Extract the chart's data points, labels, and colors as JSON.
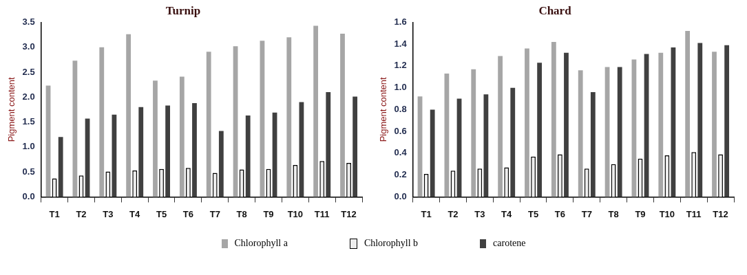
{
  "chart_data": [
    {
      "type": "bar",
      "title": "Turnip",
      "ylabel": "Pigment content",
      "categories": [
        "T1",
        "T2",
        "T3",
        "T4",
        "T5",
        "T6",
        "T7",
        "T8",
        "T9",
        "T10",
        "T11",
        "T12"
      ],
      "series": [
        {
          "name": "Chlorophyll a",
          "color": "#a6a6a6",
          "values": [
            2.23,
            2.73,
            3.0,
            3.26,
            2.33,
            2.41,
            2.91,
            3.02,
            3.13,
            3.2,
            3.43,
            3.27
          ]
        },
        {
          "name": "Chlorophyll b",
          "color": "#eeeeee",
          "values": [
            0.37,
            0.43,
            0.51,
            0.53,
            0.56,
            0.58,
            0.48,
            0.55,
            0.56,
            0.64,
            0.72,
            0.68
          ]
        },
        {
          "name": "carotene",
          "color": "#404040",
          "values": [
            1.2,
            1.57,
            1.65,
            1.8,
            1.83,
            1.88,
            1.32,
            1.63,
            1.69,
            1.9,
            2.1,
            2.01
          ]
        }
      ],
      "ylim": [
        0,
        3.5
      ],
      "yticks": [
        {
          "value": 0,
          "label": "0.0"
        },
        {
          "value": 0.5,
          "label": "0.5"
        },
        {
          "value": 1,
          "label": "1.0"
        },
        {
          "value": 1.5,
          "label": "1.5"
        },
        {
          "value": 2,
          "label": "2.0"
        },
        {
          "value": 2.5,
          "label": "2.5"
        },
        {
          "value": 3,
          "label": "3.0"
        },
        {
          "value": 3.5,
          "label": "3.5"
        }
      ],
      "grid": false,
      "legend": "bottom"
    },
    {
      "type": "bar",
      "title": "Chard",
      "ylabel": "Pigment content",
      "categories": [
        "T1",
        "T2",
        "T3",
        "T4",
        "T5",
        "T6",
        "T7",
        "T8",
        "T9",
        "T10",
        "T11",
        "T12"
      ],
      "series": [
        {
          "color": "#a6a6a6",
          "values": [
            0.92,
            1.13,
            1.17,
            1.29,
            1.36,
            1.42,
            1.16,
            1.19,
            1.26,
            1.32,
            1.52,
            1.33
          ]
        },
        {
          "color": "#eeeeee",
          "values": [
            0.21,
            0.24,
            0.26,
            0.27,
            0.37,
            0.39,
            0.26,
            0.3,
            0.35,
            0.38,
            0.41,
            0.39
          ]
        },
        {
          "color": "#404040",
          "values": [
            0.8,
            0.9,
            0.94,
            1.0,
            1.23,
            1.32,
            0.96,
            1.19,
            1.31,
            1.37,
            1.41,
            1.39
          ]
        }
      ],
      "ylim": [
        0,
        1.6
      ],
      "yticks": [
        {
          "value": 0,
          "label": "0.0"
        },
        {
          "value": 0.2,
          "label": "0.2"
        },
        {
          "value": 0.4,
          "label": "0.4"
        },
        {
          "value": 0.6,
          "label": "0.6"
        },
        {
          "value": 0.8,
          "label": "0.8"
        },
        {
          "value": 1,
          "label": "1.0"
        },
        {
          "value": 1.2,
          "label": "1.2"
        },
        {
          "value": 1.4,
          "label": "1.4"
        },
        {
          "value": 1.6,
          "label": "1.6"
        }
      ],
      "grid": false
    }
  ]
}
